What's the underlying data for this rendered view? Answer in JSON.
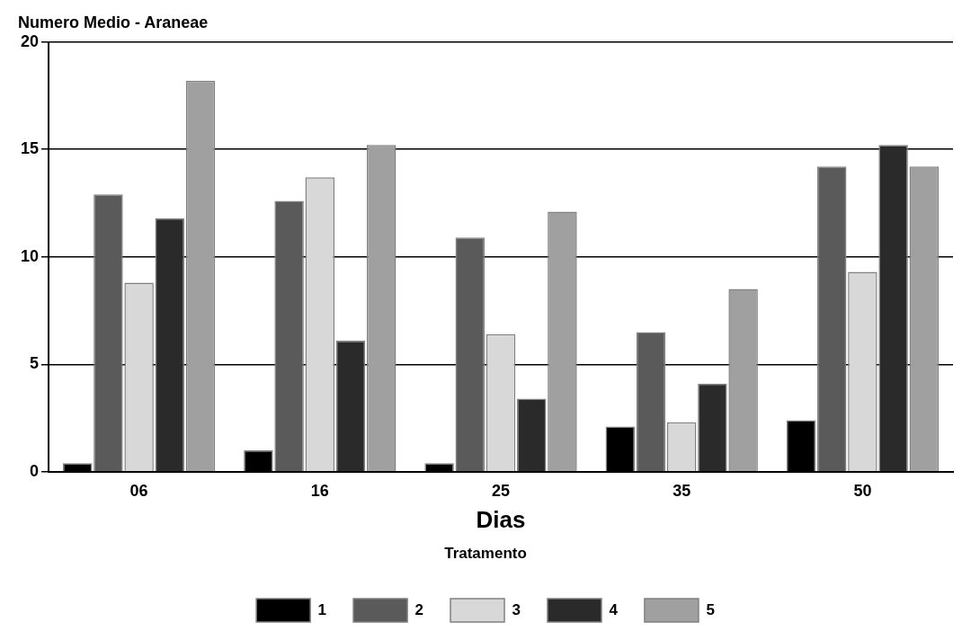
{
  "chart_data": {
    "type": "bar",
    "title": "Numero Medio - Araneae",
    "xlabel": "Dias",
    "legend_title": "Tratamento",
    "categories": [
      "06",
      "16",
      "25",
      "35",
      "50"
    ],
    "series": [
      {
        "name": "1",
        "color": "#000000",
        "values": [
          0.4,
          1.0,
          0.4,
          2.1,
          2.4
        ]
      },
      {
        "name": "2",
        "color": "#5a5a5a",
        "values": [
          12.9,
          12.6,
          10.9,
          6.5,
          14.2
        ]
      },
      {
        "name": "3",
        "color": "#d8d8d8",
        "values": [
          8.8,
          13.7,
          6.4,
          2.3,
          9.3
        ]
      },
      {
        "name": "4",
        "color": "#2a2a2a",
        "values": [
          11.8,
          6.1,
          3.4,
          4.1,
          15.2
        ]
      },
      {
        "name": "5",
        "color": "#a0a0a0",
        "values": [
          18.2,
          15.2,
          12.1,
          8.5,
          14.2
        ]
      }
    ],
    "ylim": [
      0,
      20
    ],
    "yticks": [
      0,
      5,
      10,
      15,
      20
    ],
    "grid": "y",
    "legend": "bottom"
  }
}
